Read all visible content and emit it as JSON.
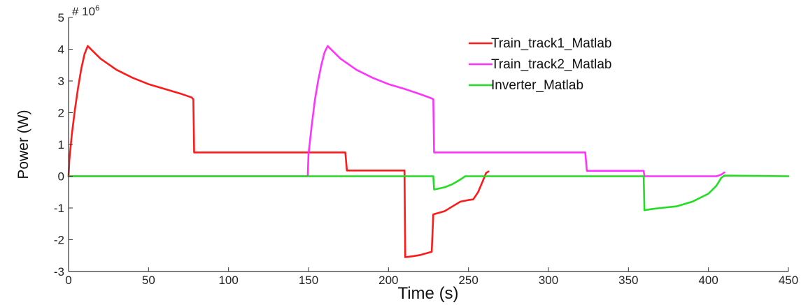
{
  "chart_data": {
    "type": "line",
    "xlabel": "Time (s)",
    "ylabel": "Power (W)",
    "exponent_label": "# 10",
    "exponent_power": "6",
    "xlim": [
      0,
      450
    ],
    "ylim": [
      -3,
      5
    ],
    "xticks": [
      0,
      50,
      100,
      150,
      200,
      250,
      300,
      350,
      400,
      450
    ],
    "yticks": [
      -3,
      -2,
      -1,
      0,
      1,
      2,
      3,
      4,
      5
    ],
    "grid": false,
    "legend_position": "top-right",
    "series": [
      {
        "name": "Train_track1_Matlab",
        "color": "#ff1a1a",
        "points": [
          [
            0,
            0
          ],
          [
            0.5,
            0.5
          ],
          [
            2,
            1.3
          ],
          [
            4,
            2.1
          ],
          [
            6,
            2.8
          ],
          [
            8,
            3.4
          ],
          [
            10,
            3.85
          ],
          [
            12,
            4.1
          ],
          [
            15,
            3.95
          ],
          [
            20,
            3.7
          ],
          [
            30,
            3.35
          ],
          [
            40,
            3.1
          ],
          [
            50,
            2.9
          ],
          [
            60,
            2.75
          ],
          [
            70,
            2.6
          ],
          [
            77,
            2.48
          ],
          [
            78,
            2.42
          ],
          [
            78.5,
            0.75
          ],
          [
            80,
            0.75
          ],
          [
            100,
            0.75
          ],
          [
            150,
            0.75
          ],
          [
            173,
            0.75
          ],
          [
            174,
            0.18
          ],
          [
            200,
            0.18
          ],
          [
            210,
            0.18
          ],
          [
            210.5,
            -2.55
          ],
          [
            215,
            -2.52
          ],
          [
            220,
            -2.48
          ],
          [
            227,
            -2.38
          ],
          [
            228,
            -1.2
          ],
          [
            235,
            -1.1
          ],
          [
            240,
            -0.95
          ],
          [
            245,
            -0.8
          ],
          [
            250,
            -0.75
          ],
          [
            253,
            -0.73
          ],
          [
            256,
            -0.5
          ],
          [
            259,
            -0.15
          ],
          [
            261,
            0.1
          ],
          [
            262.5,
            0.15
          ]
        ]
      },
      {
        "name": "Train_track2_Matlab",
        "color": "#ff33ff",
        "points": [
          [
            0,
            0
          ],
          [
            149.5,
            0
          ],
          [
            150,
            0.7
          ],
          [
            152,
            1.6
          ],
          [
            154,
            2.4
          ],
          [
            156,
            3.0
          ],
          [
            158,
            3.5
          ],
          [
            160,
            3.9
          ],
          [
            162,
            4.1
          ],
          [
            165,
            3.95
          ],
          [
            170,
            3.7
          ],
          [
            180,
            3.35
          ],
          [
            190,
            3.1
          ],
          [
            200,
            2.9
          ],
          [
            210,
            2.75
          ],
          [
            220,
            2.58
          ],
          [
            227,
            2.45
          ],
          [
            228,
            2.42
          ],
          [
            228.5,
            0.75
          ],
          [
            240,
            0.75
          ],
          [
            300,
            0.75
          ],
          [
            323,
            0.75
          ],
          [
            324,
            0.17
          ],
          [
            350,
            0.17
          ],
          [
            359.5,
            0.17
          ],
          [
            360,
            0
          ],
          [
            400,
            0
          ],
          [
            405,
            0
          ],
          [
            408,
            0.05
          ],
          [
            410,
            0.12
          ]
        ]
      },
      {
        "name": "Inverter_Matlab",
        "color": "#22dd22",
        "points": [
          [
            0,
            0
          ],
          [
            228,
            0
          ],
          [
            228.5,
            -0.42
          ],
          [
            235,
            -0.35
          ],
          [
            240,
            -0.25
          ],
          [
            245,
            -0.1
          ],
          [
            248,
            0
          ],
          [
            300,
            0
          ],
          [
            359.5,
            0
          ],
          [
            360,
            -1.07
          ],
          [
            365,
            -1.03
          ],
          [
            370,
            -1.0
          ],
          [
            380,
            -0.95
          ],
          [
            390,
            -0.8
          ],
          [
            400,
            -0.55
          ],
          [
            405,
            -0.3
          ],
          [
            408,
            -0.05
          ],
          [
            410,
            0.02
          ],
          [
            450,
            0
          ]
        ]
      }
    ]
  }
}
